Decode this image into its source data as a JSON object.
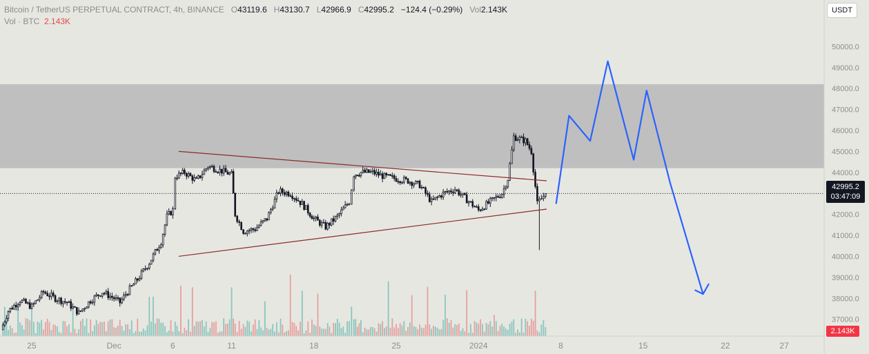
{
  "legend": {
    "symbol": "Bitcoin / TetherUS PERPETUAL CONTRACT, 4h, BINANCE",
    "o_label": "O",
    "o": "43119.6",
    "h_label": "H",
    "h": "43130.7",
    "l_label": "L",
    "l": "42966.9",
    "c_label": "C",
    "c": "42995.2",
    "change": "−124.4 (−0.29%)",
    "vol_label": "Vol",
    "vol": "2.143K",
    "vol_btc_label": "Vol · BTC",
    "vol_btc": "2.143K"
  },
  "currency_button": "USDT",
  "price_badge": {
    "price": "42995.2",
    "countdown": "03:47:09"
  },
  "volume_badge": "2.143K",
  "colors": {
    "background": "#e7e7e2",
    "zone": "#bfbfbf",
    "candle": "#131722",
    "trendline": "#8b2a2a",
    "projection": "#2962ff",
    "volume_up": "#4fb3a6",
    "volume_down": "#e57373"
  },
  "chart_data": {
    "type": "candlestick",
    "ylim": [
      36200,
      50900
    ],
    "y_ticks": [
      37000,
      38000,
      39000,
      40000,
      41000,
      42000,
      43000,
      44000,
      45000,
      46000,
      47000,
      48000,
      49000,
      50000
    ],
    "y_tick_labels": [
      "37000.0",
      "38000.0",
      "39000.0",
      "40000.0",
      "41000.0",
      "42000.0",
      "43000.0",
      "44000.0",
      "45000.0",
      "46000.0",
      "47000.0",
      "48000.0",
      "49000.0",
      "50000.0"
    ],
    "x_ticks": [
      {
        "label": "25",
        "day": -7
      },
      {
        "label": "Dec",
        "day": 0
      },
      {
        "label": "6",
        "day": 5
      },
      {
        "label": "11",
        "day": 10
      },
      {
        "label": "18",
        "day": 17
      },
      {
        "label": "25",
        "day": 24
      },
      {
        "label": "2024",
        "day": 31
      },
      {
        "label": "8",
        "day": 38
      },
      {
        "label": "15",
        "day": 45
      },
      {
        "label": "22",
        "day": 52
      },
      {
        "label": "27",
        "day": 57
      }
    ],
    "x_domain_days": [
      -9.7,
      60.4
    ],
    "current_price": 42995.2,
    "price_path": [
      [
        -9.6,
        36500
      ],
      [
        -9.0,
        37400
      ],
      [
        -8.0,
        37900
      ],
      [
        -7.0,
        37600
      ],
      [
        -6.0,
        38300
      ],
      [
        -5.0,
        38000
      ],
      [
        -4.0,
        37800
      ],
      [
        -3.0,
        37300
      ],
      [
        -2.0,
        37900
      ],
      [
        -1.0,
        38300
      ],
      [
        0.0,
        38000
      ],
      [
        0.5,
        37800
      ],
      [
        1.0,
        38200
      ],
      [
        2.0,
        38900
      ],
      [
        3.0,
        39700
      ],
      [
        4.0,
        40700
      ],
      [
        4.5,
        41900
      ],
      [
        5.0,
        42200
      ],
      [
        5.2,
        43800
      ],
      [
        6.0,
        44000
      ],
      [
        7.0,
        43600
      ],
      [
        8.0,
        44300
      ],
      [
        9.0,
        44100
      ],
      [
        10.0,
        43900
      ],
      [
        10.3,
        42000
      ],
      [
        11.0,
        41200
      ],
      [
        12.0,
        41300
      ],
      [
        13.0,
        41800
      ],
      [
        14.0,
        43100
      ],
      [
        15.0,
        43000
      ],
      [
        16.0,
        42500
      ],
      [
        17.0,
        41800
      ],
      [
        18.0,
        41400
      ],
      [
        19.0,
        41900
      ],
      [
        20.0,
        42600
      ],
      [
        20.4,
        43900
      ],
      [
        21.0,
        44000
      ],
      [
        22.0,
        44000
      ],
      [
        23.0,
        43800
      ],
      [
        24.0,
        43700
      ],
      [
        25.0,
        43600
      ],
      [
        26.0,
        43400
      ],
      [
        27.0,
        42600
      ],
      [
        28.0,
        43000
      ],
      [
        29.0,
        43200
      ],
      [
        30.0,
        42700
      ],
      [
        31.0,
        42200
      ],
      [
        32.0,
        42600
      ],
      [
        33.0,
        43000
      ],
      [
        33.5,
        43700
      ],
      [
        34.0,
        45700
      ],
      [
        35.0,
        45500
      ],
      [
        35.5,
        45000
      ],
      [
        36.0,
        42500
      ],
      [
        36.7,
        42995
      ]
    ],
    "zone": {
      "from": 44200,
      "to": 48200
    },
    "trendlines": [
      {
        "x": [
          5.5,
          36.8
        ],
        "y": [
          45000,
          43600
        ]
      },
      {
        "x": [
          5.5,
          36.8
        ],
        "y": [
          40000,
          42250
        ]
      }
    ],
    "projection": {
      "x": [
        37.6,
        38.7,
        40.5,
        42.0,
        44.2,
        45.3,
        47.3,
        50.1,
        50.6
      ],
      "y": [
        42500,
        46700,
        45500,
        49300,
        44600,
        47900,
        43500,
        38200,
        38700
      ]
    },
    "volume_note": "volume bars shown along the bottom of the plot"
  }
}
